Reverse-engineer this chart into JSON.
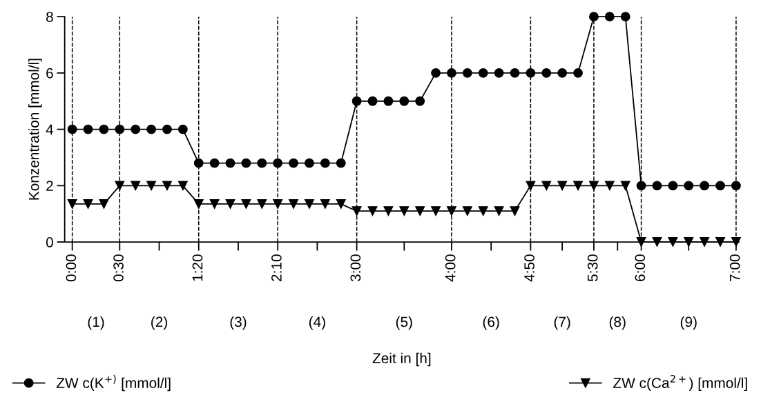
{
  "chart_data": {
    "type": "line",
    "xlabel": "Zeit in [h]",
    "ylabel": "Konzentration [mmol/l]",
    "x": [
      0,
      0.1667,
      0.3333,
      0.5,
      0.6667,
      0.8333,
      1,
      1.1667,
      1.3333,
      1.5,
      1.6667,
      1.8333,
      2,
      2.1667,
      2.3333,
      2.5,
      2.6667,
      2.8333,
      3,
      3.1667,
      3.3333,
      3.5,
      3.6667,
      3.8333,
      4,
      4.1667,
      4.3333,
      4.5,
      4.6667,
      4.8333,
      5,
      5.1667,
      5.3333,
      5.5,
      5.6667,
      5.8333,
      6,
      6.1667,
      6.3333,
      6.5,
      6.6667,
      6.8333,
      7
    ],
    "series": [
      {
        "name": "ZW c(K$^{+)}$ [mmol/l]",
        "color": "#000000",
        "marker": "circle",
        "values": [
          4,
          4,
          4,
          4,
          4,
          4,
          4,
          4,
          2.8,
          2.8,
          2.8,
          2.8,
          2.8,
          2.8,
          2.8,
          2.8,
          2.8,
          2.8,
          5,
          5,
          5,
          5,
          5,
          6,
          6,
          6,
          6,
          6,
          6,
          6,
          6,
          6,
          6,
          8,
          8,
          8,
          2,
          2,
          2,
          2,
          2,
          2,
          2
        ]
      },
      {
        "name": "ZW c(Ca$^{2+}$) [mmol/l]",
        "color": "#000000",
        "marker": "triangle",
        "values": [
          1.35,
          1.35,
          1.35,
          2,
          2,
          2,
          2,
          2,
          1.35,
          1.35,
          1.35,
          1.35,
          1.35,
          1.35,
          1.35,
          1.35,
          1.35,
          1.35,
          1.1,
          1.1,
          1.1,
          1.1,
          1.1,
          1.1,
          1.1,
          1.1,
          1.1,
          1.1,
          1.1,
          2,
          2,
          2,
          2,
          2,
          2,
          2,
          0,
          0,
          0,
          0,
          0,
          0,
          0
        ]
      }
    ],
    "xlim": [
      -0.08,
      7.03
    ],
    "ylim": [
      0,
      8
    ],
    "yticks": [
      0,
      2,
      4,
      6,
      8
    ],
    "xticks": [
      {
        "value": 0,
        "label": "0:00"
      },
      {
        "value": 0.5,
        "label": "0:30"
      },
      {
        "value": 0.9167,
        "label": null
      },
      {
        "value": 1.3333,
        "label": "1:20"
      },
      {
        "value": 1.75,
        "label": null
      },
      {
        "value": 2.1667,
        "label": "2:10"
      },
      {
        "value": 2.5833,
        "label": null
      },
      {
        "value": 3,
        "label": "3:00"
      },
      {
        "value": 3.5,
        "label": null
      },
      {
        "value": 4,
        "label": "4:00"
      },
      {
        "value": 4.4167,
        "label": null
      },
      {
        "value": 4.8333,
        "label": "4:50"
      },
      {
        "value": 5.1667,
        "label": null
      },
      {
        "value": 5.5,
        "label": "5:30"
      },
      {
        "value": 5.75,
        "label": null
      },
      {
        "value": 6,
        "label": "6:00"
      },
      {
        "value": 6.5,
        "label": null
      },
      {
        "value": 7,
        "label": "7:00"
      }
    ],
    "ref_lines": [
      {
        "axis": "x",
        "value": 0,
        "color": "#000000",
        "line_style": "dashed"
      },
      {
        "axis": "x",
        "value": 0.5,
        "color": "#000000",
        "line_style": "dashed"
      },
      {
        "axis": "x",
        "value": 1.3333,
        "color": "#000000",
        "line_style": "dashed"
      },
      {
        "axis": "x",
        "value": 2.1667,
        "color": "#000000",
        "line_style": "dashed"
      },
      {
        "axis": "x",
        "value": 3,
        "color": "#000000",
        "line_style": "dashed"
      },
      {
        "axis": "x",
        "value": 4,
        "color": "#000000",
        "line_style": "dashed"
      },
      {
        "axis": "x",
        "value": 4.8333,
        "color": "#000000",
        "line_style": "dashed"
      },
      {
        "axis": "x",
        "value": 5.5,
        "color": "#000000",
        "line_style": "dashed"
      },
      {
        "axis": "x",
        "value": 6,
        "color": "#000000",
        "line_style": "dashed"
      },
      {
        "axis": "x",
        "value": 7,
        "color": "#000000",
        "line_style": "dashed"
      }
    ],
    "annotations": [
      "(1)",
      "(2)",
      "(3)",
      "(4)",
      "(5)",
      "(6)",
      "(7)",
      "(8)",
      "(9)"
    ],
    "line_style": "solid",
    "grid": false,
    "legend": "bottom"
  }
}
